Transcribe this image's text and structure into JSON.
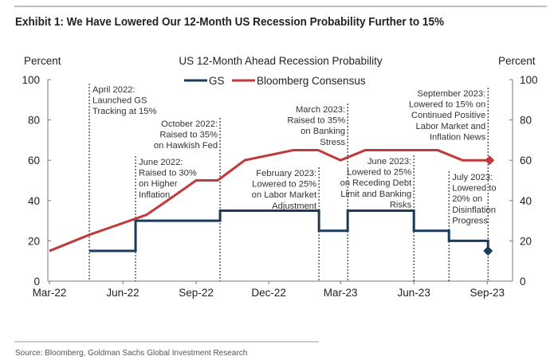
{
  "header": {
    "title": "Exhibit 1: We Have Lowered Our 12-Month US Recession Probability Further to 15%"
  },
  "footer": {
    "source": "Source: Bloomberg, Goldman Sachs Global Investment Research"
  },
  "chart_data": {
    "type": "line",
    "title": "US 12-Month Ahead Recession Probability",
    "ylabel_left": "Percent",
    "ylabel_right": "Percent",
    "ylim": [
      0,
      100
    ],
    "yticks": [
      0,
      20,
      40,
      60,
      80,
      100
    ],
    "xlim": [
      "2022-03-01",
      "2023-09-30"
    ],
    "xticks": [
      {
        "date": "2022-03-01",
        "label": "Mar-22"
      },
      {
        "date": "2022-06-01",
        "label": "Jun-22"
      },
      {
        "date": "2022-09-01",
        "label": "Sep-22"
      },
      {
        "date": "2022-12-01",
        "label": "Dec-22"
      },
      {
        "date": "2023-03-01",
        "label": "Mar-23"
      },
      {
        "date": "2023-06-01",
        "label": "Jun-23"
      },
      {
        "date": "2023-09-01",
        "label": "Sep-23"
      }
    ],
    "legend_position": "top-center",
    "grid": false,
    "series": [
      {
        "name": "GS",
        "color": "#1b3a5c",
        "step": true,
        "end_marker": "diamond",
        "points": [
          [
            "2022-04-20",
            15
          ],
          [
            "2022-06-17",
            30
          ],
          [
            "2022-10-01",
            35
          ],
          [
            "2023-02-02",
            25
          ],
          [
            "2023-03-10",
            35
          ],
          [
            "2023-06-01",
            25
          ],
          [
            "2023-07-15",
            20
          ],
          [
            "2023-09-02",
            15
          ]
        ]
      },
      {
        "name": "Bloomberg Consensus",
        "color": "#c0393b",
        "step": false,
        "end_marker": "diamond",
        "points": [
          [
            "2022-03-01",
            15
          ],
          [
            "2022-04-20",
            23
          ],
          [
            "2022-06-17",
            31
          ],
          [
            "2022-07-01",
            33
          ],
          [
            "2022-07-27",
            40
          ],
          [
            "2022-09-01",
            50
          ],
          [
            "2022-09-28",
            50
          ],
          [
            "2022-11-01",
            60
          ],
          [
            "2023-01-01",
            65
          ],
          [
            "2023-02-01",
            65
          ],
          [
            "2023-03-01",
            60
          ],
          [
            "2023-04-01",
            65
          ],
          [
            "2023-07-01",
            65
          ],
          [
            "2023-08-01",
            60
          ],
          [
            "2023-09-04",
            60
          ]
        ]
      }
    ],
    "annotations": [
      {
        "date": "2022-04-20",
        "lines": [
          "April 2022:",
          "Launched GS",
          "Tracking at 15%"
        ]
      },
      {
        "date": "2022-06-17",
        "lines": [
          "June 2022:",
          "Raised to 30%",
          "on Higher",
          "Inflation"
        ]
      },
      {
        "date": "2022-10-01",
        "lines": [
          "October 2022:",
          "Raised to 35%",
          "on Hawkish Fed"
        ]
      },
      {
        "date": "2023-02-02",
        "lines": [
          "February 2023:",
          "Lowered to 25%",
          "on Labor Market",
          "Adjustment"
        ]
      },
      {
        "date": "2023-03-10",
        "lines": [
          "March 2023:",
          "Raised to 35%",
          "on Banking",
          "Stress"
        ]
      },
      {
        "date": "2023-06-01",
        "lines": [
          "June 2023:",
          "Lowered to 25%",
          "on Receding Debt",
          "Limit and Banking",
          "Risks"
        ]
      },
      {
        "date": "2023-07-15",
        "lines": [
          "July 2023:",
          "Lowered to",
          "20% on",
          "Disinflation",
          "Progress"
        ]
      },
      {
        "date": "2023-09-02",
        "lines": [
          "September 2023:",
          "Lowered to 15% on",
          "Continued Positive",
          "Labor Market and",
          "Inflation News"
        ]
      }
    ]
  }
}
